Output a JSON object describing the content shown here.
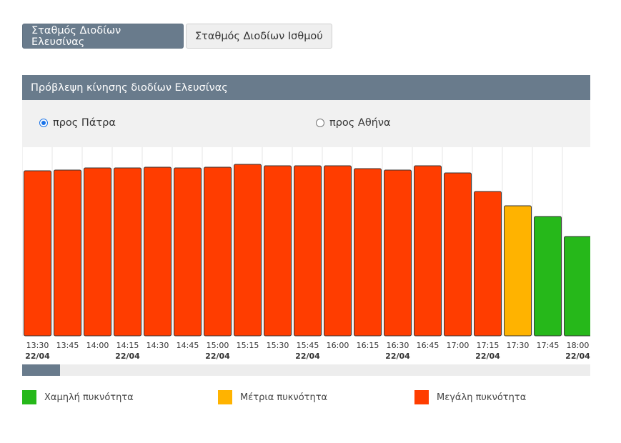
{
  "tabs": [
    {
      "label": "Σταθμός Διοδίων Ελευσίνας",
      "active": true
    },
    {
      "label": "Σταθμός Διοδίων Ισθμού",
      "active": false
    }
  ],
  "panel": {
    "title": "Πρόβλεψη κίνησης διοδίων Ελευσίνας",
    "directions": [
      {
        "label": "προς Πάτρα",
        "selected": true
      },
      {
        "label": "προς Αθήνα",
        "selected": false
      }
    ]
  },
  "legend": [
    {
      "label": "Χαμηλή πυκνότητα",
      "color": "#26b81a"
    },
    {
      "label": "Μέτρια πυκνότητα",
      "color": "#ffb300"
    },
    {
      "label": "Μεγάλη πυκνότητα",
      "color": "#ff3d00"
    }
  ],
  "scrollbar": {
    "position": 0.07
  },
  "chart_data": {
    "type": "bar",
    "categories": [
      "13:30",
      "13:45",
      "14:00",
      "14:15",
      "14:30",
      "14:45",
      "15:00",
      "15:15",
      "15:30",
      "15:45",
      "16:00",
      "16:15",
      "16:30",
      "16:45",
      "17:00",
      "17:15",
      "17:30",
      "17:45",
      "18:00"
    ],
    "date_labels": [
      "22/04",
      "",
      "",
      "22/04",
      "",
      "",
      "22/04",
      "",
      "",
      "22/04",
      "",
      "",
      "22/04",
      "",
      "",
      "22/04",
      "",
      "",
      "22/04"
    ],
    "values": [
      231,
      232,
      235,
      235,
      236,
      235,
      236,
      240,
      238,
      238,
      238,
      234,
      232,
      238,
      228,
      202,
      182,
      167,
      139
    ],
    "levels": [
      "high",
      "high",
      "high",
      "high",
      "high",
      "high",
      "high",
      "high",
      "high",
      "high",
      "high",
      "high",
      "high",
      "high",
      "high",
      "high",
      "medium",
      "low",
      "low"
    ],
    "colors": {
      "low": "#26b81a",
      "medium": "#ffb300",
      "high": "#ff3d00"
    },
    "ylim": [
      0,
      264
    ],
    "grid": "vertical",
    "legend_position": "bottom"
  }
}
